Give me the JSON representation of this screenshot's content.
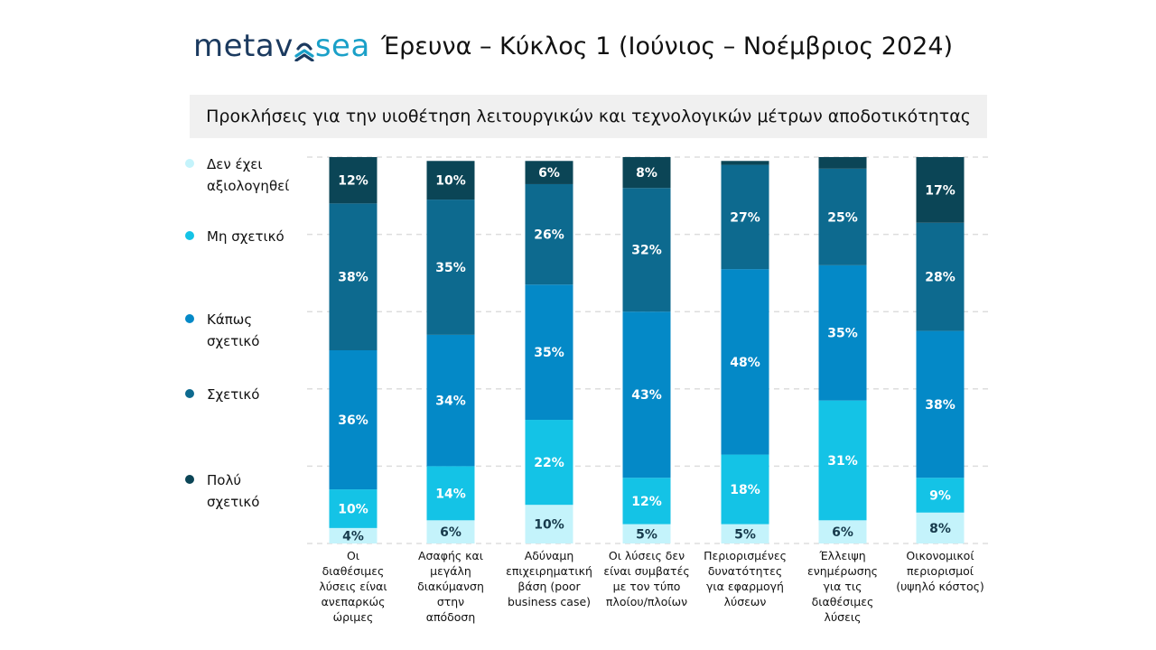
{
  "header": {
    "logo_left": "metav",
    "logo_right": "sea",
    "title": "Έρευνα – Κύκλος 1 (Ιούνιος – Νοέμβριος 2024)"
  },
  "colors": {
    "not_evaluated": "#c4f3fb",
    "not_relevant": "#14c3e6",
    "somewhat": "#0489c7",
    "relevant": "#0d6a8f",
    "very": "#0b4556",
    "grid": "#dddddd",
    "label_dark": "#173a4c",
    "label_light": "#ffffff"
  },
  "chart_data": {
    "type": "bar",
    "stacked": true,
    "normalized_to": 100,
    "title": "Προκλήσεις για την υιοθέτηση λειτουργικών και τεχνολογικών μέτρων αποδοτικότητας",
    "xlabel": "",
    "ylabel": "",
    "ylim": [
      0,
      100
    ],
    "grid": true,
    "legend_position": "left",
    "categories": [
      [
        "Οι",
        "διαθέσιμες",
        "λύσεις είναι",
        "ανεπαρκώς",
        "ώριμες"
      ],
      [
        "Ασαφής και",
        "μεγάλη",
        "διακύμανση",
        "στην",
        "απόδοση"
      ],
      [
        "Αδύναμη",
        "επιχειρηματική",
        "βάση (poor",
        "business case)"
      ],
      [
        "Οι λύσεις δεν",
        "είναι συμβατές",
        "με τον τύπο",
        "πλοίου/πλοίων"
      ],
      [
        "Περιορισμένες",
        "δυνατότητες",
        "για εφαρμογή",
        "λύσεων"
      ],
      [
        "Έλλειψη",
        "ενημέρωσης",
        "για τις",
        "διαθέσιμες",
        "λύσεις"
      ],
      [
        "Οικονομικοί",
        "περιορισμοί",
        "(υψηλό κόστος)"
      ]
    ],
    "series": [
      {
        "name": "Δεν έχει αξιολογηθεί",
        "color_key": "not_evaluated",
        "values": [
          4,
          6,
          10,
          5,
          5,
          6,
          8
        ],
        "labels": [
          "4%",
          "6%",
          "10%",
          "5%",
          "5%",
          "6%",
          "8%"
        ]
      },
      {
        "name": "Μη σχετικό",
        "color_key": "not_relevant",
        "values": [
          10,
          14,
          22,
          12,
          18,
          31,
          9
        ],
        "labels": [
          "10%",
          "14%",
          "22%",
          "12%",
          "18%",
          "31%",
          "9%"
        ]
      },
      {
        "name": "Κάπως σχετικό",
        "color_key": "somewhat",
        "values": [
          36,
          34,
          35,
          43,
          48,
          35,
          38
        ],
        "labels": [
          "36%",
          "34%",
          "35%",
          "43%",
          "48%",
          "35%",
          "38%"
        ]
      },
      {
        "name": "Σχετικό",
        "color_key": "relevant",
        "values": [
          38,
          35,
          26,
          32,
          27,
          25,
          28
        ],
        "labels": [
          "38%",
          "35%",
          "26%",
          "32%",
          "27%",
          "25%",
          "28%"
        ]
      },
      {
        "name": "Πολύ σχετικό",
        "color_key": "very",
        "values": [
          12,
          10,
          6,
          8,
          1,
          3,
          17
        ],
        "labels": [
          "12%",
          "10%",
          "6%",
          "8%",
          "",
          "",
          "17%"
        ]
      }
    ]
  },
  "legend": [
    {
      "lines": [
        "Δεν έχει",
        "αξιολογηθεί"
      ],
      "color_key": "not_evaluated"
    },
    {
      "lines": [
        "Μη σχετικό"
      ],
      "color_key": "not_relevant"
    },
    {
      "lines": [
        "Κάπως",
        "σχετικό"
      ],
      "color_key": "somewhat"
    },
    {
      "lines": [
        "Σχετικό"
      ],
      "color_key": "relevant"
    },
    {
      "lines": [
        "Πολύ",
        "σχετικό"
      ],
      "color_key": "very"
    }
  ]
}
